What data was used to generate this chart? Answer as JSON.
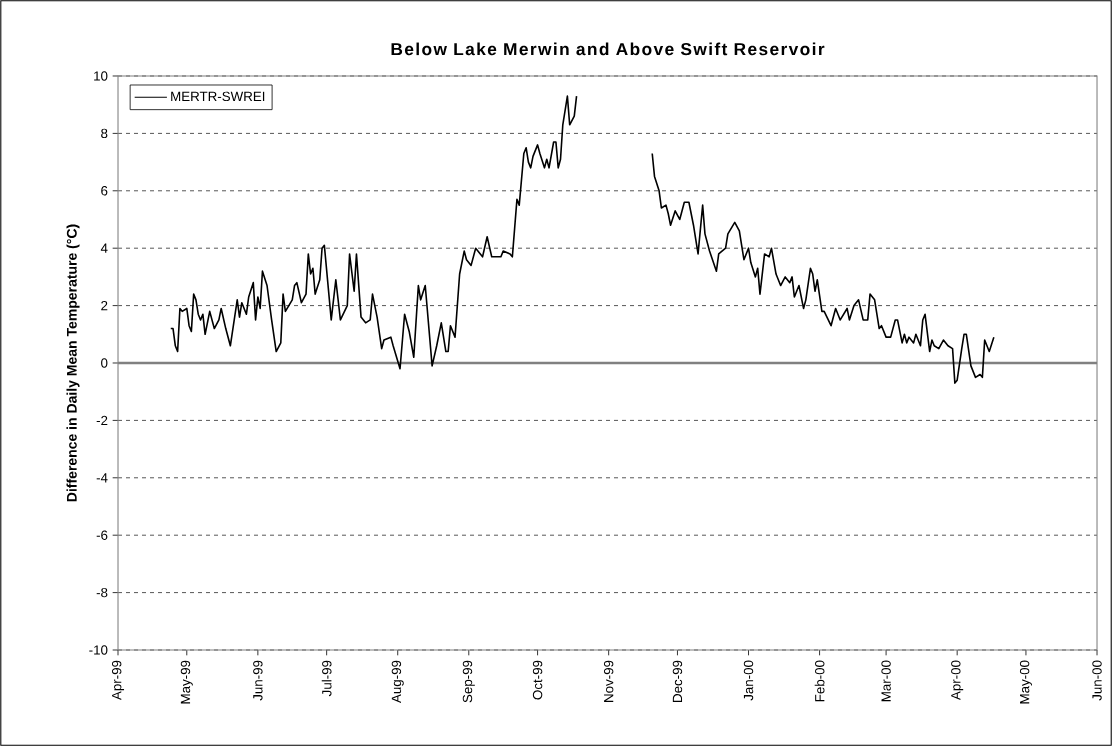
{
  "chart_data": {
    "type": "line",
    "title": "Below Lake Merwin and Above Swift Reservoir",
    "ylabel": "Difference in Daily Mean Temperature (°C)",
    "xlim": [
      "1999-04-01",
      "2000-06-01"
    ],
    "xticks": [
      {
        "value": "1999-04-01",
        "label": "Apr-99"
      },
      {
        "value": "1999-05-01",
        "label": "May-99"
      },
      {
        "value": "1999-06-01",
        "label": "Jun-99"
      },
      {
        "value": "1999-07-01",
        "label": "Jul-99"
      },
      {
        "value": "1999-08-01",
        "label": "Aug-99"
      },
      {
        "value": "1999-09-01",
        "label": "Sep-99"
      },
      {
        "value": "1999-10-01",
        "label": "Oct-99"
      },
      {
        "value": "1999-11-01",
        "label": "Nov-99"
      },
      {
        "value": "1999-12-01",
        "label": "Dec-99"
      },
      {
        "value": "2000-01-01",
        "label": "Jan-00"
      },
      {
        "value": "2000-02-01",
        "label": "Feb-00"
      },
      {
        "value": "2000-03-01",
        "label": "Mar-00"
      },
      {
        "value": "2000-04-01",
        "label": "Apr-00"
      },
      {
        "value": "2000-05-01",
        "label": "May-00"
      },
      {
        "value": "2000-06-01",
        "label": "Jun-00"
      }
    ],
    "ylim": [
      -10,
      10
    ],
    "yticks": [
      -10,
      -8,
      -6,
      -4,
      -2,
      0,
      2,
      4,
      6,
      8,
      10
    ],
    "grid": "y",
    "legend": "top left",
    "marker": "none",
    "line_style": "solid",
    "ref_lines": [
      {
        "axis": "y",
        "value": 0,
        "color": "#808080"
      }
    ],
    "x": [
      "1999-04-24",
      "1999-04-25",
      "1999-04-26",
      "1999-04-27",
      "1999-04-28",
      "1999-04-29",
      "1999-05-01",
      "1999-05-02",
      "1999-05-03",
      "1999-05-04",
      "1999-05-05",
      "1999-05-06",
      "1999-05-07",
      "1999-05-08",
      "1999-05-09",
      "1999-05-11",
      "1999-05-13",
      "1999-05-15",
      "1999-05-16",
      "1999-05-18",
      "1999-05-20",
      "1999-05-23",
      "1999-05-24",
      "1999-05-25",
      "1999-05-27",
      "1999-05-28",
      "1999-05-30",
      "1999-05-31",
      "1999-06-01",
      "1999-06-02",
      "1999-06-03",
      "1999-06-05",
      "1999-06-07",
      "1999-06-09",
      "1999-06-11",
      "1999-06-12",
      "1999-06-13",
      "1999-06-16",
      "1999-06-17",
      "1999-06-18",
      "1999-06-20",
      "1999-06-22",
      "1999-06-23",
      "1999-06-24",
      "1999-06-25",
      "1999-06-26",
      "1999-06-28",
      "1999-06-29",
      "1999-06-30",
      "1999-07-03",
      "1999-07-05",
      "1999-07-07",
      "1999-07-10",
      "1999-07-11",
      "1999-07-13",
      "1999-07-14",
      "1999-07-16",
      "1999-07-18",
      "1999-07-20",
      "1999-07-21",
      "1999-07-23",
      "1999-07-25",
      "1999-07-26",
      "1999-07-29",
      "1999-07-30",
      "1999-08-02",
      "1999-08-04",
      "1999-08-06",
      "1999-08-08",
      "1999-08-10",
      "1999-08-11",
      "1999-08-13",
      "1999-08-16",
      "1999-08-18",
      "1999-08-20",
      "1999-08-22",
      "1999-08-23",
      "1999-08-24",
      "1999-08-26",
      "1999-08-28",
      "1999-08-30",
      "1999-08-31",
      "1999-09-02",
      "1999-09-04",
      "1999-09-07",
      "1999-09-09",
      "1999-09-11",
      "1999-09-15",
      "1999-09-16",
      "1999-09-19",
      "1999-09-20",
      "1999-09-21",
      "1999-09-22",
      "1999-09-23",
      "1999-09-25",
      "1999-09-26",
      "1999-09-27",
      "1999-09-28",
      "1999-09-29",
      "1999-10-01",
      "1999-10-02",
      "1999-10-04",
      "1999-10-05",
      "1999-10-06",
      "1999-10-08",
      "1999-10-09",
      "1999-10-10",
      "1999-10-11",
      "1999-10-12",
      "1999-10-14",
      "1999-10-15",
      "1999-10-17",
      "1999-10-18",
      "1999-11-05",
      "1999-11-20",
      "1999-11-21",
      "1999-11-23",
      "1999-11-24",
      "1999-11-26",
      "1999-11-27",
      "1999-11-28",
      "1999-11-30",
      "1999-12-02",
      "1999-12-04",
      "1999-12-06",
      "1999-12-08",
      "1999-12-09",
      "1999-12-10",
      "1999-12-12",
      "1999-12-13",
      "1999-12-15",
      "1999-12-18",
      "1999-12-19",
      "1999-12-22",
      "1999-12-23",
      "1999-12-26",
      "1999-12-28",
      "1999-12-30",
      "2000-01-01",
      "2000-01-02",
      "2000-01-04",
      "2000-01-05",
      "2000-01-06",
      "2000-01-08",
      "2000-01-10",
      "2000-01-11",
      "2000-01-13",
      "2000-01-15",
      "2000-01-17",
      "2000-01-19",
      "2000-01-20",
      "2000-01-21",
      "2000-01-23",
      "2000-01-25",
      "2000-01-26",
      "2000-01-28",
      "2000-01-29",
      "2000-01-30",
      "2000-01-31",
      "2000-02-02",
      "2000-02-03",
      "2000-02-06",
      "2000-02-07",
      "2000-02-08",
      "2000-02-10",
      "2000-02-13",
      "2000-02-14",
      "2000-02-16",
      "2000-02-18",
      "2000-02-20",
      "2000-02-22",
      "2000-02-23",
      "2000-02-25",
      "2000-02-27",
      "2000-02-28",
      "2000-03-01",
      "2000-03-03",
      "2000-03-05",
      "2000-03-06",
      "2000-03-08",
      "2000-03-09",
      "2000-03-10",
      "2000-03-11",
      "2000-03-13",
      "2000-03-14",
      "2000-03-16",
      "2000-03-17",
      "2000-03-18",
      "2000-03-20",
      "2000-03-21",
      "2000-03-22",
      "2000-03-24",
      "2000-03-26",
      "2000-03-28",
      "2000-03-30",
      "2000-03-31",
      "2000-04-01",
      "2000-04-03",
      "2000-04-04",
      "2000-04-05",
      "2000-04-07",
      "2000-04-09",
      "2000-04-11",
      "2000-04-12",
      "2000-04-13",
      "2000-04-15",
      "2000-04-17"
    ],
    "series": [
      {
        "name": "MERTR-SWREI",
        "color": "#000000",
        "values": [
          1.2,
          1.2,
          0.6,
          0.4,
          1.9,
          1.8,
          1.9,
          1.3,
          1.1,
          2.4,
          2.2,
          1.7,
          1.5,
          1.7,
          1.0,
          1.8,
          1.2,
          1.5,
          1.9,
          1.2,
          0.6,
          2.2,
          1.6,
          2.1,
          1.7,
          2.3,
          2.8,
          1.5,
          2.3,
          1.9,
          3.2,
          2.7,
          1.5,
          0.4,
          0.7,
          2.4,
          1.8,
          2.2,
          2.7,
          2.8,
          2.1,
          2.4,
          3.8,
          3.1,
          3.3,
          2.4,
          2.9,
          4.0,
          4.1,
          1.5,
          2.9,
          1.5,
          2.0,
          3.8,
          2.5,
          3.8,
          1.6,
          1.4,
          1.5,
          2.4,
          1.6,
          0.5,
          0.8,
          0.9,
          0.6,
          -0.2,
          1.7,
          1.1,
          0.2,
          2.7,
          2.2,
          2.7,
          -0.1,
          0.6,
          1.4,
          0.4,
          0.4,
          1.3,
          0.9,
          3.1,
          3.9,
          3.6,
          3.4,
          4.0,
          3.7,
          4.4,
          3.7,
          3.7,
          3.9,
          3.8,
          3.7,
          4.7,
          5.7,
          5.5,
          7.3,
          7.5,
          7.0,
          6.8,
          7.2,
          7.6,
          7.3,
          6.8,
          7.1,
          6.8,
          7.7,
          7.7,
          6.8,
          7.1,
          8.3,
          9.3,
          8.3,
          8.6,
          9.3,
          null,
          7.3,
          6.5,
          6.0,
          5.4,
          5.5,
          5.2,
          4.8,
          5.3,
          5.0,
          5.6,
          5.6,
          4.8,
          4.3,
          3.8,
          5.5,
          4.5,
          3.9,
          3.2,
          3.8,
          4.0,
          4.5,
          4.9,
          4.6,
          3.6,
          4.0,
          3.5,
          3.0,
          3.3,
          2.4,
          3.8,
          3.7,
          4.0,
          3.1,
          2.7,
          3.0,
          2.8,
          3.0,
          2.3,
          2.7,
          1.9,
          2.2,
          3.3,
          3.1,
          2.5,
          2.9,
          1.8,
          1.8,
          1.3,
          1.6,
          1.9,
          1.5,
          1.9,
          1.5,
          2.0,
          2.2,
          1.5,
          1.5,
          2.4,
          2.2,
          1.2,
          1.3,
          0.9,
          0.9,
          1.5,
          1.5,
          0.7,
          1.0,
          0.7,
          0.9,
          0.7,
          1.0,
          0.6,
          1.5,
          1.7,
          0.4,
          0.8,
          0.6,
          0.5,
          0.8,
          0.6,
          0.5,
          -0.7,
          -0.6,
          0.5,
          1.0,
          1.0,
          -0.1,
          -0.5,
          -0.4,
          -0.5,
          0.8,
          0.4,
          0.9
        ]
      }
    ]
  }
}
